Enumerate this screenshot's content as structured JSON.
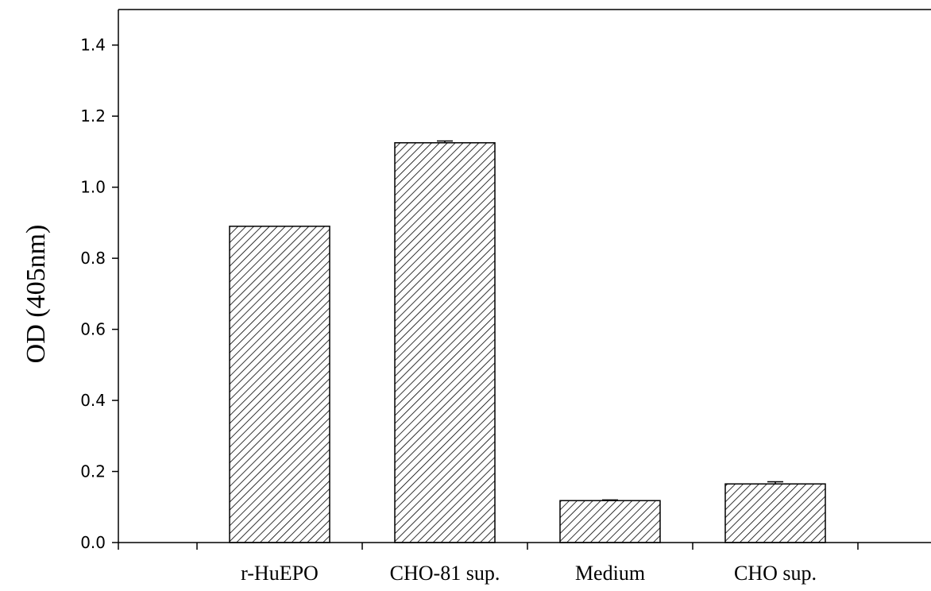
{
  "chart_data": {
    "type": "bar",
    "title": "",
    "xlabel": "",
    "ylabel": "OD (405nm)",
    "categories": [
      "r-HuEPO",
      "CHO-81 sup.",
      "Medium",
      "CHO sup."
    ],
    "values": [
      0.89,
      1.125,
      0.118,
      0.165
    ],
    "errors": [
      0.0,
      0.005,
      0.002,
      0.006
    ],
    "ylim": [
      0.0,
      1.5
    ],
    "yticks": [
      "0.0",
      "0.2",
      "0.4",
      "0.6",
      "0.8",
      "1.0",
      "1.2",
      "1.4"
    ],
    "grid": false,
    "legend": "none",
    "bar_fill": "diagonal-hatch",
    "colors": {
      "bar_stroke": "#000000",
      "hatch": "#000000",
      "background": "#ffffff"
    }
  }
}
